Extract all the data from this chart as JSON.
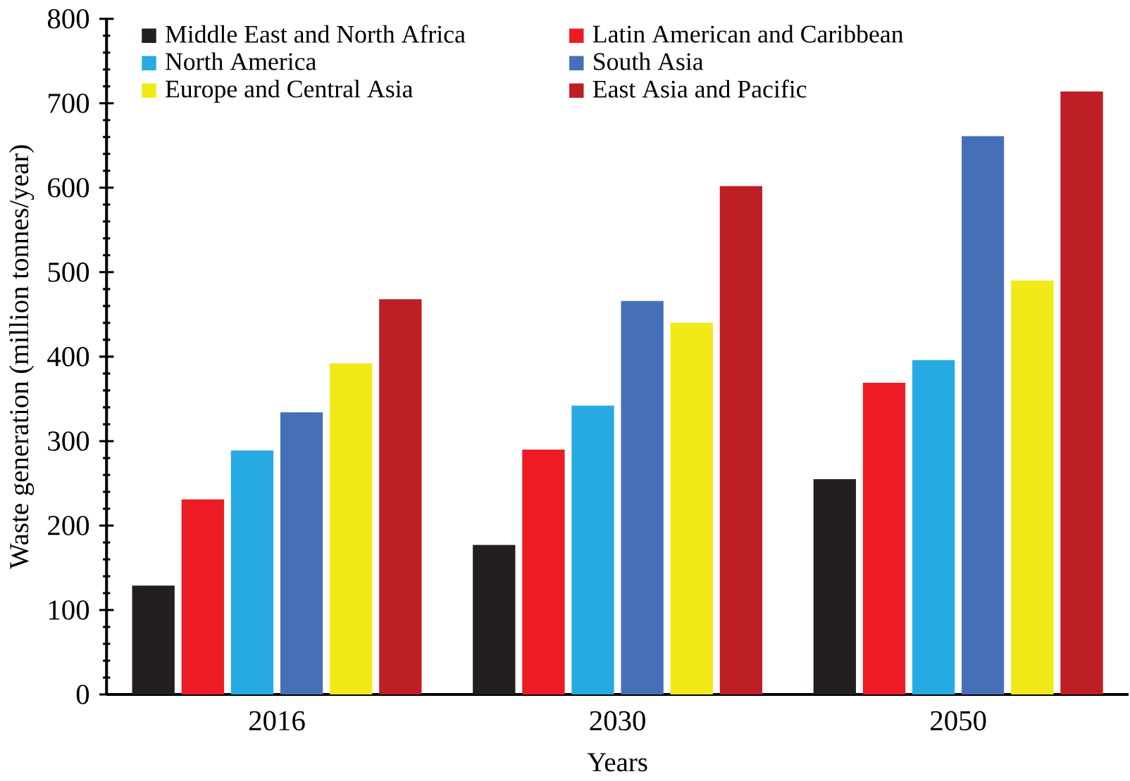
{
  "chart_data": {
    "type": "bar",
    "xlabel": "Years",
    "ylabel": "Waste generation (million tonnes/year)",
    "categories": [
      "2016",
      "2030",
      "2050"
    ],
    "series": [
      {
        "name": "Middle East and North Africa",
        "color": "#231f20",
        "values": [
          129,
          177,
          255
        ]
      },
      {
        "name": "Latin American and Caribbean",
        "color": "#ed1c24",
        "values": [
          231,
          290,
          369
        ]
      },
      {
        "name": "North America",
        "color": "#27aae1",
        "values": [
          289,
          342,
          396
        ]
      },
      {
        "name": "South Asia",
        "color": "#4570b8",
        "values": [
          334,
          466,
          661
        ]
      },
      {
        "name": "Europe and Central Asia",
        "color": "#f2e918",
        "values": [
          392,
          440,
          490
        ]
      },
      {
        "name": "East Asia and Pacific",
        "color": "#be1e26",
        "values": [
          468,
          602,
          714
        ]
      }
    ],
    "ylim": [
      0,
      800
    ],
    "yticks": [
      0,
      100,
      200,
      300,
      400,
      500,
      600,
      700,
      800
    ],
    "grid": false,
    "legend": "top left"
  }
}
